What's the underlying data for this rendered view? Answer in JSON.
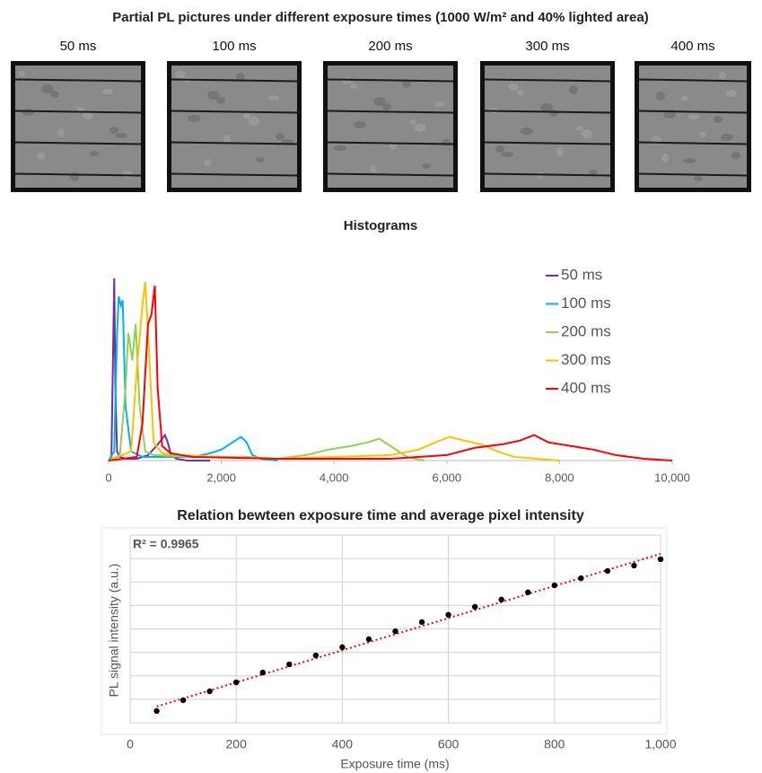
{
  "pictures": {
    "title": "Partial PL pictures under different exposure times (1000 W/m² and 40% lighted area)",
    "labels": [
      "50 ms",
      "100 ms",
      "200 ms",
      "300 ms",
      "400 ms"
    ]
  },
  "chart_data": [
    {
      "type": "line",
      "title": "Histograms",
      "xlim": [
        0,
        10000
      ],
      "xticks": [
        0,
        {
          "value": 2000,
          "label": "2,000"
        },
        {
          "value": 4000,
          "label": "4,000"
        },
        {
          "value": 6000,
          "label": "6,000"
        },
        {
          "value": 8000,
          "label": "8,000"
        },
        {
          "value": 10000,
          "label": "10,000"
        }
      ],
      "ylim": [
        0,
        100
      ],
      "legend": "top-right",
      "series": [
        {
          "name": "50 ms",
          "color": "#7030a0",
          "x": [
            0,
            50,
            80,
            100,
            120,
            150,
            200,
            300,
            500,
            700,
            850,
            950,
            1000,
            1050,
            1100,
            1200,
            1400,
            1800
          ],
          "values": [
            0,
            2,
            60,
            100,
            40,
            5,
            2,
            1,
            1,
            3,
            8,
            12,
            14,
            10,
            4,
            1,
            0,
            0
          ]
        },
        {
          "name": "100 ms",
          "color": "#00b0f0",
          "x": [
            0,
            100,
            150,
            180,
            220,
            250,
            300,
            400,
            600,
            1000,
            1500,
            1800,
            2000,
            2200,
            2350,
            2450,
            2550,
            2700,
            3000
          ],
          "values": [
            0,
            5,
            70,
            90,
            85,
            88,
            30,
            5,
            2,
            2,
            2,
            4,
            6,
            10,
            13,
            10,
            3,
            1,
            0
          ]
        },
        {
          "name": "200 ms",
          "color": "#92d050",
          "x": [
            0,
            200,
            300,
            350,
            420,
            480,
            550,
            650,
            800,
            1500,
            2500,
            3000,
            3500,
            3900,
            4300,
            4600,
            4800,
            5000,
            5300,
            5600
          ],
          "values": [
            0,
            3,
            40,
            70,
            55,
            75,
            30,
            5,
            3,
            2,
            2,
            1,
            3,
            6,
            8,
            10,
            12,
            8,
            2,
            0
          ]
        },
        {
          "name": "300 ms",
          "color": "#ffc000",
          "x": [
            0,
            400,
            500,
            600,
            650,
            700,
            800,
            950,
            1200,
            2000,
            3000,
            4000,
            5000,
            5500,
            5800,
            6050,
            6300,
            6600,
            6900,
            7200,
            8000
          ],
          "values": [
            0,
            5,
            50,
            85,
            98,
            70,
            10,
            4,
            3,
            2,
            1,
            2,
            3,
            6,
            10,
            13,
            11,
            9,
            5,
            2,
            0
          ]
        },
        {
          "name": "400 ms",
          "color": "#ff0000",
          "x": [
            0,
            500,
            600,
            700,
            760,
            820,
            870,
            950,
            1100,
            1500,
            3000,
            5000,
            6000,
            6500,
            7000,
            7300,
            7550,
            7800,
            8200,
            8600,
            9000,
            9500,
            10000
          ],
          "values": [
            0,
            2,
            20,
            75,
            80,
            96,
            40,
            8,
            4,
            2,
            1,
            1,
            3,
            7,
            9,
            11,
            14,
            10,
            8,
            6,
            3,
            1,
            0
          ]
        }
      ]
    },
    {
      "type": "scatter",
      "title": "Relation bewteen exposure time and average pixel intensity",
      "x_label": "Exposure time (ms)",
      "y_label": "PL signal intensity (a.u.)",
      "annotation": "R² = 0.9965",
      "xlim": [
        0,
        1000
      ],
      "xticks": [
        0,
        200,
        400,
        600,
        800,
        {
          "value": 1000,
          "label": "1,000"
        }
      ],
      "ylim": [
        0,
        8
      ],
      "yticks": [
        0,
        1,
        2,
        3,
        4,
        5,
        6,
        7,
        8
      ],
      "grid": true,
      "color": "#000000",
      "x": [
        50,
        100,
        150,
        200,
        250,
        300,
        350,
        400,
        450,
        500,
        550,
        600,
        650,
        700,
        750,
        800,
        850,
        900,
        950,
        1000
      ],
      "values": [
        0.5,
        0.96,
        1.34,
        1.72,
        2.14,
        2.49,
        2.87,
        3.22,
        3.56,
        3.9,
        4.29,
        4.6,
        4.94,
        5.25,
        5.56,
        5.86,
        6.16,
        6.47,
        6.7,
        6.97
      ],
      "trendline": {
        "color": "#ff0000",
        "x": [
          50,
          1000
        ],
        "values": [
          0.69,
          7.2
        ]
      }
    }
  ]
}
